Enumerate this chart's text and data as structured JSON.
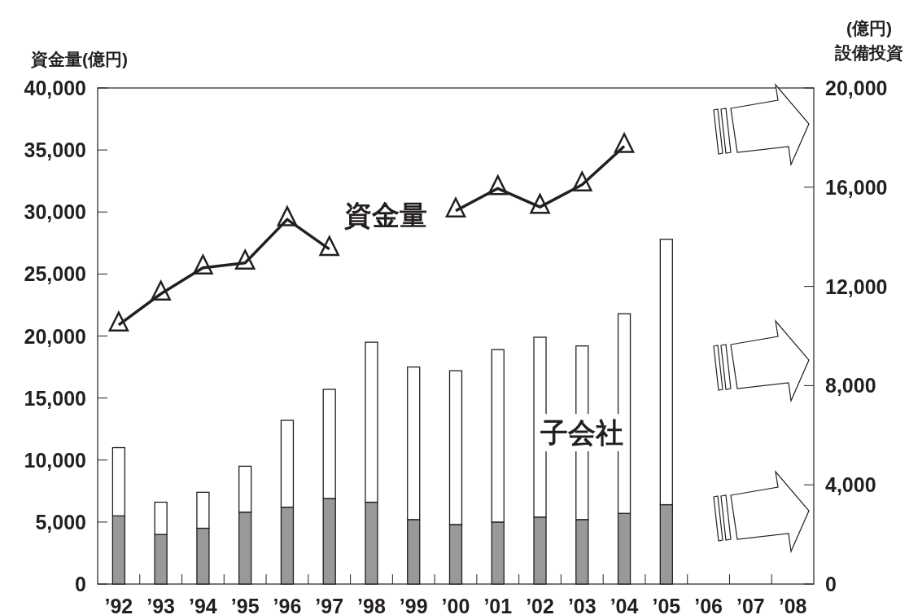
{
  "chart_data": {
    "type": "bar",
    "stacked": true,
    "grid": false,
    "ylabel": "資金量(億円)",
    "y2label": "(億円)\n設備投資",
    "categories": [
      "’92",
      "’93",
      "’94",
      "’95",
      "’96",
      "’97",
      "’98",
      "’99",
      "’00",
      "’01",
      "’02",
      "’03",
      "’04",
      "’05",
      "’06",
      "’07",
      "’08"
    ],
    "ylim": [
      0,
      40000
    ],
    "yticks": [
      0,
      {
        "value": 5000,
        "label": "5,000"
      },
      {
        "value": 10000,
        "label": "10,000"
      },
      {
        "value": 15000,
        "label": "15,000"
      },
      {
        "value": 20000,
        "label": "20,000"
      },
      {
        "value": 25000,
        "label": "25,000"
      },
      {
        "value": 30000,
        "label": "30,000"
      },
      {
        "value": 35000,
        "label": "35,000"
      },
      {
        "value": 40000,
        "label": "40,000"
      }
    ],
    "y2lim": [
      0,
      20000
    ],
    "y2ticks": [
      0,
      {
        "value": 4000,
        "label": "4,000"
      },
      {
        "value": 8000,
        "label": "8,000"
      },
      {
        "value": 12000,
        "label": "12,000"
      },
      {
        "value": 16000,
        "label": "16,000"
      },
      {
        "value": 20000,
        "label": "20,000"
      }
    ],
    "series": [
      {
        "axis": "y2",
        "color": "#999999",
        "values": [
          2750,
          2000,
          2250,
          2900,
          3100,
          3450,
          3300,
          2600,
          2400,
          2500,
          2700,
          2600,
          2850,
          3200,
          null,
          null,
          null
        ]
      },
      {
        "axis": "y2",
        "name": "子会社",
        "color": "#ffffff",
        "values": [
          2750,
          1300,
          1450,
          1850,
          3500,
          4400,
          6450,
          6150,
          6200,
          6950,
          7250,
          7000,
          8050,
          10700,
          null,
          null,
          null
        ]
      },
      {
        "type": "line",
        "axis": "y",
        "name": "資金量",
        "color": "#231f20",
        "marker": "triangle",
        "line_style": "solid",
        "values": [
          20900,
          23400,
          25500,
          25900,
          29400,
          27000,
          null,
          null,
          30100,
          31900,
          30400,
          32200,
          35300,
          null,
          null,
          null,
          null
        ]
      }
    ]
  }
}
